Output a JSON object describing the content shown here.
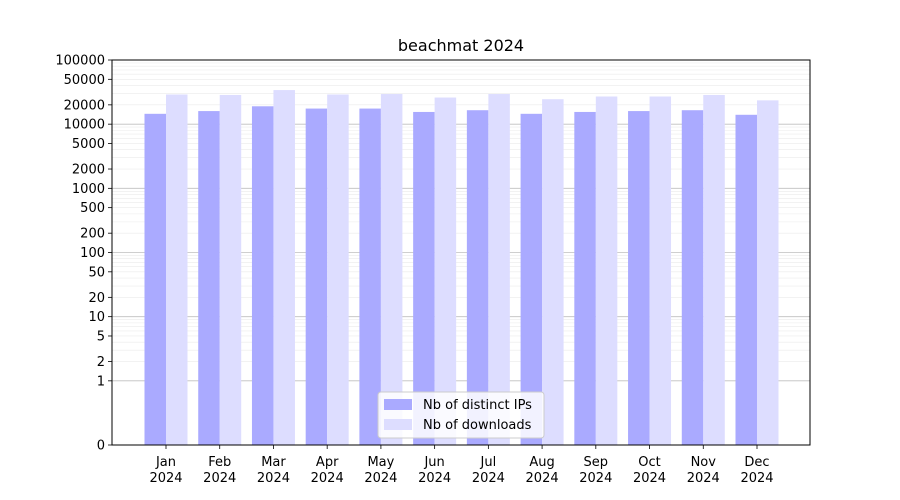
{
  "chart_data": {
    "type": "bar",
    "title": "beachmat 2024",
    "xlabel": "",
    "ylabel": "",
    "yscale": "symlog",
    "ylim": [
      0,
      100000
    ],
    "grid": true,
    "legend_placement": "bottom-center",
    "categories": [
      [
        "Jan",
        "2024"
      ],
      [
        "Feb",
        "2024"
      ],
      [
        "Mar",
        "2024"
      ],
      [
        "Apr",
        "2024"
      ],
      [
        "May",
        "2024"
      ],
      [
        "Jun",
        "2024"
      ],
      [
        "Jul",
        "2024"
      ],
      [
        "Aug",
        "2024"
      ],
      [
        "Sep",
        "2024"
      ],
      [
        "Oct",
        "2024"
      ],
      [
        "Nov",
        "2024"
      ],
      [
        "Dec",
        "2024"
      ]
    ],
    "y_ticks": [
      0,
      1,
      2,
      5,
      10,
      20,
      50,
      100,
      200,
      500,
      1000,
      2000,
      5000,
      10000,
      20000,
      50000,
      100000
    ],
    "y_tick_labels": [
      "0",
      "1",
      "2",
      "5",
      "10",
      "20",
      "50",
      "100",
      "200",
      "500",
      "1000",
      "2000",
      "5000",
      "10000",
      "20000",
      "50000",
      "100000"
    ],
    "series": [
      {
        "name": "Nb of distinct IPs",
        "color": "#aaaaff",
        "values": [
          14500,
          16000,
          19000,
          17500,
          17500,
          15500,
          16500,
          14500,
          15500,
          16000,
          16500,
          14000
        ]
      },
      {
        "name": "Nb of downloads",
        "color": "#ddddff",
        "values": [
          29000,
          28500,
          34000,
          29000,
          29500,
          26000,
          29500,
          24500,
          27000,
          27000,
          28500,
          23500
        ]
      }
    ]
  }
}
